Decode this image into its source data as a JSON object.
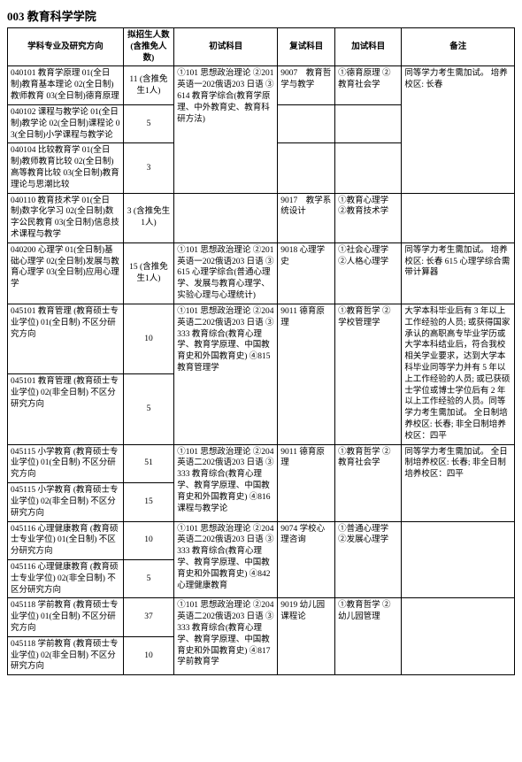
{
  "title": "003 教育科学学院",
  "headers": {
    "major": "学科专业及研究方向",
    "num": "拟招生人数\n(含推免人数)",
    "exam1": "初试科目",
    "exam2": "复试科目",
    "exam3": "加试科目",
    "note": "备注"
  },
  "rows": [
    {
      "major": "040101 教育学原理\n01(全日制)教育基本理论\n02(全日制)教师教育\n03(全日制)德育原理",
      "num": "11\n(含推免生1人)",
      "exam1": "①101 思想政治理论\n②201 英语一202俄语203 日语\n③614 教育学综合(教育学原理、中外教育史、教育科研方法)",
      "exam1_rs": 3,
      "exam2": "9007　教育哲学与教学",
      "exam3": "①德育原理\n②教育社会学",
      "note": "同等学力考生需加试。\n培养校区: 长春",
      "note_rs": 3
    },
    {
      "major": "040102 课程与教学论\n01(全日制)教学论\n02(全日制)课程论\n03(全日制)小学课程与教学论",
      "num": "5",
      "exam2": "",
      "exam3": ""
    },
    {
      "major": "040104 比较教育学\n01(全日制)教师教育比较\n02(全日制)高等教育比较\n03(全日制)教育理论与思潮比较",
      "num": "3",
      "exam2": "",
      "exam3": ""
    },
    {
      "major": "040110 教育技术学\n01(全日制)数字化学习\n02(全日制)数字公民教育\n03(全日制)信息技术课程与教学",
      "num": "3\n(含推免生1人)",
      "exam1": "",
      "exam2": "9017　教学系统设计",
      "exam3": "①教育心理学\n②教育技术学",
      "note": ""
    },
    {
      "major": "040200 心理学\n01(全日制)基础心理学\n02(全日制)发展与教育心理学\n03(全日制)应用心理学",
      "num": "15\n(含推免生1人)",
      "exam1": "①101 思想政治理论\n②201 英语一202俄语203 日语\n③615 心理学综合(普通心理学、发展与教育心理学、实验心理与心理统计)",
      "exam2": "9018 心理学史",
      "exam3": "①社会心理学\n②人格心理学",
      "note": "同等学力考生需加试。\n培养校区: 长春\n615 心理学综合需带计算器"
    },
    {
      "major": "045101 教育管理\n(教育硕士专业学位)\n01(全日制) 不区分研究方向",
      "num": "10",
      "exam1": "①101 思想政治理论\n②204 英语二202俄语203 日语\n③333 教育综合(教育心理学、教育学原理、中国教育史和外国教育史)\n④815 教育管理学",
      "exam1_rs": 2,
      "exam2": "9011 德育原理",
      "exam2_rs": 2,
      "exam3": "①教育哲学\n②学校管理学",
      "exam3_rs": 2,
      "note": "大学本科毕业后有 3 年以上工作经验的人员; 或获得国家承认的高职高专毕业学历或大学本科结业后，符合我校相关学业要求，达到大学本科毕业同等学力并有 5 年以上工作经验的人员; 或已获硕士学位或博士学位后有 2 年以上工作经验的人员。同等学力考生需加试。\n全日制培养校区: 长春;\n非全日制培养校区：四平",
      "note_rs": 2
    },
    {
      "major": "045101 教育管理\n(教育硕士专业学位)\n02(非全日制) 不区分研究方向",
      "num": "5"
    },
    {
      "major": "045115 小学教育\n(教育硕士专业学位)\n01(全日制) 不区分研究方向",
      "num": "51",
      "exam1": "①101 思想政治理论\n②204 英语二202俄语203 日语\n③333 教育综合(教育心理学、教育学原理、中国教育史和外国教育史)\n④816 课程与教学论",
      "exam1_rs": 2,
      "exam2": "9011 德育原理",
      "exam2_rs": 2,
      "exam3": "①教育哲学\n②教育社会学",
      "exam3_rs": 2,
      "note": "同等学力考生需加试。\n全日制培养校区: 长春;\n非全日制培养校区：四平",
      "note_rs": 2
    },
    {
      "major": "045115 小学教育\n(教育硕士专业学位)\n02(非全日制) 不区分研究方向",
      "num": "15"
    },
    {
      "major": "045116 心理健康教育\n(教育硕士专业学位)\n01(全日制) 不区分研究方向",
      "num": "10",
      "exam1": "①101 思想政治理论\n②204 英语二202俄语203 日语\n③333 教育综合(教育心理学、教育学原理、中国教育史和外国教育史)\n④842 心理健康教育",
      "exam1_rs": 2,
      "exam2": "9074 学校心理咨询",
      "exam2_rs": 2,
      "exam3": "①普通心理学\n②发展心理学",
      "exam3_rs": 2,
      "note": "",
      "note_rs": 2
    },
    {
      "major": "045116 心理健康教育\n(教育硕士专业学位)\n02(非全日制) 不区分研究方向",
      "num": "5"
    },
    {
      "major": "045118 学前教育\n(教育硕士专业学位)\n01(全日制) 不区分研究方向",
      "num": "37",
      "exam1": "①101 思想政治理论\n②204 英语二202俄语203 日语\n③333 教育综合(教育心理学、教育学原理、中国教育史和外国教育史)\n④817 学前教育学",
      "exam1_rs": 2,
      "exam2": "9019 幼儿园课程论",
      "exam2_rs": 2,
      "exam3": "①教育哲学\n②幼儿园管理",
      "exam3_rs": 2,
      "note": "",
      "note_rs": 2
    },
    {
      "major": "045118 学前教育\n(教育硕士专业学位)\n02(非全日制) 不区分研究方向",
      "num": "10"
    }
  ]
}
